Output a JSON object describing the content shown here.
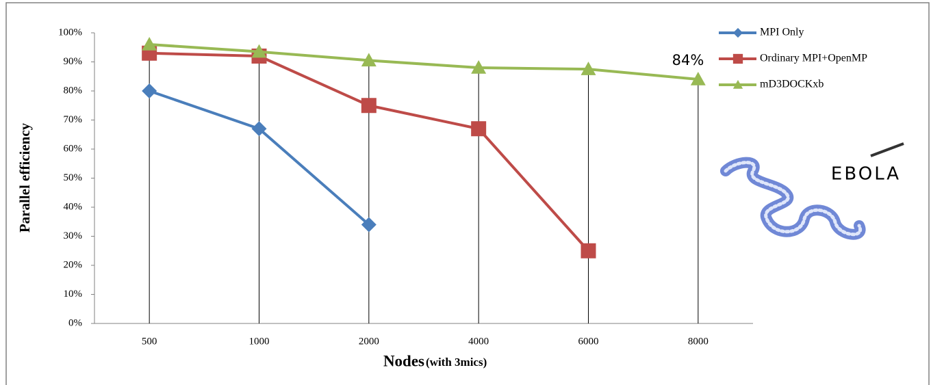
{
  "chart_data": {
    "type": "line",
    "y_label": "Parallel efficiency",
    "x_label": "Nodes",
    "x_label_note": "(with 3mics)",
    "categories": [
      "500",
      "1000",
      "2000",
      "4000",
      "6000",
      "8000"
    ],
    "series": [
      {
        "name": "MPI Only",
        "color": "#4a7ebb",
        "marker": "diamond",
        "values": [
          80,
          67,
          34,
          null,
          null,
          null
        ]
      },
      {
        "name": "Ordinary MPI+OpenMP",
        "color": "#be4b48",
        "marker": "square",
        "values": [
          93,
          92,
          75,
          67,
          25,
          null
        ]
      },
      {
        "name": "mD3DOCKxb",
        "color": "#98b954",
        "marker": "triangle",
        "values": [
          96,
          93.5,
          90.5,
          88,
          87.5,
          84
        ]
      }
    ],
    "ylim": [
      0,
      100
    ],
    "yticks": [
      {
        "value": 0,
        "label": "0%"
      },
      {
        "value": 10,
        "label": "10%"
      },
      {
        "value": 20,
        "label": "20%"
      },
      {
        "value": 30,
        "label": "30%"
      },
      {
        "value": 40,
        "label": "40%"
      },
      {
        "value": 50,
        "label": "50%"
      },
      {
        "value": 60,
        "label": "60%"
      },
      {
        "value": 70,
        "label": "70%"
      },
      {
        "value": 80,
        "label": "80%"
      },
      {
        "value": 90,
        "label": "90%"
      },
      {
        "value": 100,
        "label": "100%"
      }
    ],
    "drop_lines": true,
    "legend": "top-right",
    "annotations": [
      {
        "text": "84%",
        "color": "#1e7a5a"
      },
      {
        "text": "EBOLA",
        "color": "#b03030"
      }
    ]
  }
}
